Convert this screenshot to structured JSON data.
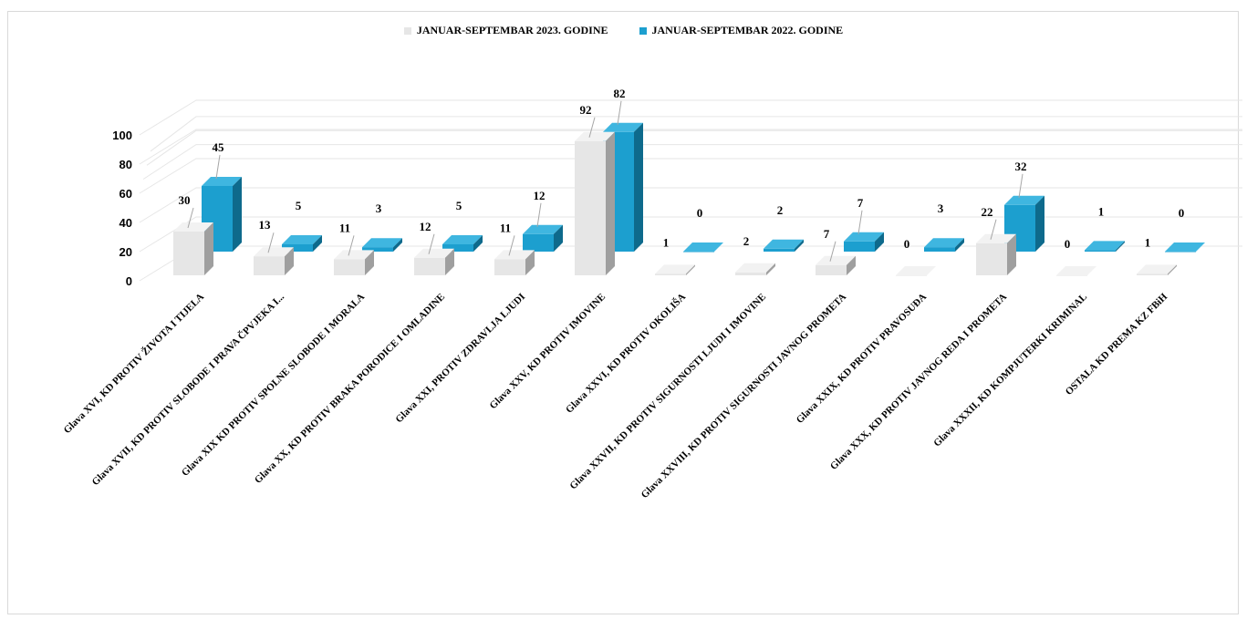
{
  "chart_data": {
    "type": "bar",
    "title": "",
    "xlabel": "",
    "ylabel": "",
    "ylim": [
      0,
      100
    ],
    "yticks": [
      "0",
      "20",
      "40",
      "60",
      "80",
      "100"
    ],
    "grid": true,
    "legend_position": "top",
    "categories": [
      "Glava XVI, KD PROTIV ŽIVOTA I TIJELA",
      "Glava XVII, KD PROTIV SLOBODE I PRAVA ČPVJEKA I...",
      "Glava XIX KD PROTIV SPOLNE SLOBODE I MORALA",
      "Glava XX, KD PROTIV BRAKA PORODICE I OMLADINE",
      "Glava XXI, PROTIV ZDRAVLJA LJUDI",
      "Glava XXV, KD PROTIV IMOVINE",
      "Glava XXVI, KD PROTIV OKOLIŠA",
      "Glava XXVII, KD PROTIV SIGURNOSTI LJUDI I IMOVINE",
      "Glava XXVIII, KD PROTIV SIGURNOSTI JAVNOG PROMETA",
      "Glava XXIX, KD PROTIV PRAVOSUĐA",
      "Glava XXX, KD PROTIV JAVNOG REDA I PROMETA",
      "Glava XXXII, KD KOMPJUTERKI KRIMINAL",
      "OSTALA KD PREMA KZ FBiH"
    ],
    "series": [
      {
        "name": "JANUAR-SEPTEMBAR 2023. GODINE",
        "values": [
          30,
          13,
          11,
          12,
          11,
          92,
          1,
          2,
          7,
          0,
          22,
          0,
          1
        ]
      },
      {
        "name": "JANUAR-SEPTEMBAR 2022. GODINE",
        "values": [
          45,
          5,
          3,
          5,
          12,
          82,
          0,
          2,
          7,
          3,
          32,
          1,
          0
        ]
      }
    ],
    "colors": {
      "series1_front": "#e6e6e6",
      "series1_side": "#9f9f9f",
      "series1_top": "#f2f2f2",
      "series2_front": "#1c9fcf",
      "series2_side": "#0e6a8c",
      "series2_top": "#3fb6e0",
      "grid": "#e6e6e6"
    }
  }
}
